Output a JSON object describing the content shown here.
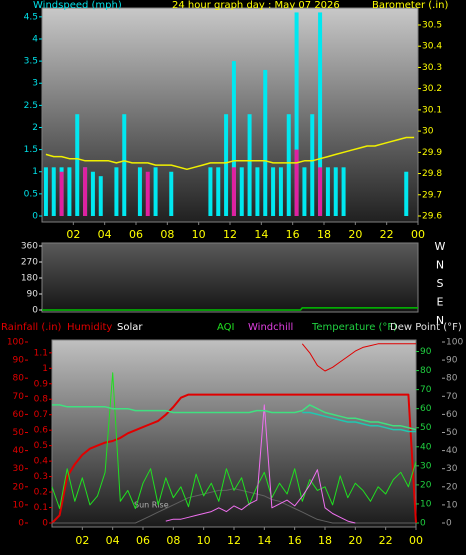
{
  "chart_data": [
    {
      "type": "combo",
      "title": "24 hour graph day : May 07 2026",
      "title_color": "#ffff00",
      "y_label": "Windspeed (mph)",
      "y_color": "#00e0e8",
      "y2_label": "Barometer (.in)",
      "y2_color": "#ffff00",
      "xlim": [
        0,
        24
      ],
      "xtick_color": "#ffff00",
      "xticks": [
        {
          "value": 2,
          "label": "02"
        },
        {
          "value": 4,
          "label": "04"
        },
        {
          "value": 6,
          "label": "06"
        },
        {
          "value": 8,
          "label": "08"
        },
        10,
        12,
        14,
        16,
        18,
        20,
        22,
        {
          "value": 24,
          "label": "00"
        }
      ],
      "ylim": [
        0,
        4.7
      ],
      "yticks": [
        0,
        0.5,
        1,
        1.5,
        2,
        2.5,
        3,
        3.5,
        4,
        4.5
      ],
      "y2lim": [
        29.6,
        30.58
      ],
      "y2ticks": [
        29.6,
        29.7,
        29.8,
        29.9,
        30,
        30.1,
        30.2,
        30.3,
        30.4,
        30.5
      ],
      "x": [
        0.25,
        0.75,
        1.25,
        1.75,
        2.25,
        2.75,
        3.25,
        3.75,
        4.25,
        4.75,
        5.25,
        5.75,
        6.25,
        6.75,
        7.25,
        7.75,
        8.25,
        8.75,
        9.25,
        9.75,
        10.25,
        10.75,
        11.25,
        11.75,
        12.25,
        12.75,
        13.25,
        13.75,
        14.25,
        14.75,
        15.25,
        15.75,
        16.25,
        16.75,
        17.25,
        17.75,
        18.25,
        18.75,
        19.25,
        19.75,
        20.25,
        20.75,
        21.25,
        21.75,
        22.25,
        22.75,
        23.25,
        23.75
      ],
      "series": [
        {
          "kind": "bar",
          "color": "#00e8f0",
          "values": [
            1.1,
            1.1,
            1.1,
            1.1,
            2.3,
            1.1,
            1.0,
            0.9,
            0,
            1.1,
            2.3,
            0,
            1.1,
            0,
            1.1,
            0,
            1.0,
            0,
            0,
            0,
            0,
            1.1,
            1.1,
            2.3,
            3.5,
            1.1,
            2.3,
            1.1,
            3.3,
            1.1,
            1.1,
            2.3,
            4.6,
            1.1,
            2.3,
            4.6,
            1.1,
            1.1,
            1.1,
            0,
            0,
            0,
            0,
            0,
            0,
            0,
            1.0,
            0
          ]
        },
        {
          "kind": "bar",
          "color": "#e020a0",
          "values": [
            0,
            0,
            1.0,
            0,
            0,
            1.1,
            0,
            0,
            0,
            0,
            0,
            0,
            0,
            1.0,
            0,
            0,
            0,
            0,
            0,
            0,
            0,
            0,
            0,
            0,
            1.1,
            0,
            0,
            0,
            0,
            0,
            0,
            0,
            1.5,
            0,
            0,
            1.1,
            0,
            0,
            0,
            0,
            0,
            0,
            0,
            0,
            0,
            0,
            0,
            0
          ]
        },
        {
          "kind": "line",
          "axis": "y2",
          "color": "#f0f000",
          "values": [
            29.89,
            29.88,
            29.88,
            29.87,
            29.87,
            29.86,
            29.86,
            29.86,
            29.86,
            29.85,
            29.86,
            29.85,
            29.85,
            29.85,
            29.84,
            29.84,
            29.84,
            29.83,
            29.82,
            29.83,
            29.84,
            29.85,
            29.85,
            29.85,
            29.86,
            29.86,
            29.86,
            29.86,
            29.86,
            29.85,
            29.85,
            29.85,
            29.85,
            29.86,
            29.86,
            29.87,
            29.88,
            29.89,
            29.9,
            29.91,
            29.92,
            29.93,
            29.93,
            29.94,
            29.95,
            29.96,
            29.97,
            29.97
          ]
        }
      ]
    },
    {
      "type": "line",
      "xlim": [
        0,
        24
      ],
      "ylim": [
        0,
        360
      ],
      "yticks": [
        0,
        90,
        180,
        270,
        360
      ],
      "y_color": "#e0e0e0",
      "y2ticks": [
        {
          "value": 360,
          "label": "W"
        },
        {
          "value": 270,
          "label": "N"
        },
        {
          "value": 180,
          "label": "S"
        },
        {
          "value": 90,
          "label": "E"
        },
        {
          "value": 0,
          "label": "N"
        }
      ],
      "x": [
        0,
        16.5,
        16.6,
        24
      ],
      "series": [
        {
          "kind": "line",
          "color": "#00c000",
          "values": [
            0,
            0,
            12,
            12
          ]
        }
      ]
    },
    {
      "type": "combo",
      "xlim": [
        0,
        24
      ],
      "xtick_color": "#ffff00",
      "xticks": [
        {
          "value": 2,
          "label": "02"
        },
        {
          "value": 4,
          "label": "04"
        },
        {
          "value": 6,
          "label": "06"
        },
        {
          "value": 8,
          "label": "08"
        },
        10,
        12,
        14,
        16,
        18,
        20,
        22,
        {
          "value": 24,
          "label": "00"
        }
      ],
      "axes": [
        {
          "side": "left-outer",
          "color": "#e00000",
          "lim": [
            0,
            100
          ],
          "ticks": [
            0,
            10,
            20,
            30,
            40,
            50,
            60,
            70,
            80,
            90,
            100
          ]
        },
        {
          "side": "left-inner",
          "color": "#e00000",
          "lim": [
            0,
            1.17
          ],
          "ticks": [
            0,
            0.1,
            0.2,
            0.3,
            0.4,
            0.5,
            0.6,
            0.7,
            0.8,
            0.9,
            1,
            1.1
          ]
        },
        {
          "side": "right-inner",
          "color": "#20d040",
          "lim": [
            0,
            95
          ],
          "ticks": [
            0,
            10,
            20,
            30,
            40,
            50,
            60,
            70,
            80,
            90
          ]
        },
        {
          "side": "right-outer",
          "color": "#a0a0a0",
          "lim": [
            0,
            100
          ],
          "ticks": [
            0,
            10,
            20,
            30,
            40,
            50,
            60,
            70,
            80,
            90,
            100
          ]
        }
      ],
      "annotations": [
        "Sun Rise"
      ],
      "x": [
        0,
        0.5,
        1,
        1.5,
        2,
        2.5,
        3,
        3.5,
        4,
        4.5,
        5,
        5.5,
        6,
        6.5,
        7,
        7.5,
        8,
        8.5,
        9,
        9.5,
        10,
        10.5,
        11,
        11.5,
        12,
        12.5,
        13,
        13.5,
        14,
        14.5,
        15,
        15.5,
        16,
        16.5,
        17,
        17.5,
        18,
        18.5,
        19,
        19.5,
        20,
        20.5,
        21,
        21.5,
        22,
        22.5,
        23,
        23.5,
        24
      ],
      "series": [
        {
          "name": "Rainfall (.in)",
          "kind": "line",
          "axis": 1,
          "color": "#e00000",
          "label_color": "#e00000",
          "width": 2,
          "values": [
            0,
            0.05,
            0.3,
            0.38,
            0.44,
            0.48,
            0.5,
            0.52,
            0.53,
            0.55,
            0.58,
            0.6,
            0.62,
            0.64,
            0.66,
            0.7,
            0.75,
            0.81,
            0.83,
            0.83,
            0.83,
            0.83,
            0.83,
            0.83,
            0.83,
            0.83,
            0.83,
            0.83,
            0.83,
            0.83,
            0.83,
            0.83,
            0.83,
            0.83,
            0.83,
            0.83,
            0.83,
            0.83,
            0.83,
            0.83,
            0.83,
            0.83,
            0.83,
            0.83,
            0.83,
            0.83,
            0.83,
            0.83,
            0
          ]
        },
        {
          "name": "Humidity",
          "kind": "line",
          "axis": 0,
          "color": "#e00000",
          "label_color": "#e00000",
          "width": 1,
          "values": [
            null,
            null,
            null,
            null,
            null,
            null,
            null,
            null,
            null,
            null,
            null,
            null,
            null,
            null,
            null,
            null,
            null,
            null,
            null,
            null,
            null,
            null,
            null,
            null,
            null,
            null,
            null,
            null,
            null,
            null,
            null,
            null,
            null,
            99,
            94,
            87,
            84,
            86,
            89,
            92,
            95,
            97,
            98,
            99,
            99,
            99,
            99,
            99,
            99
          ]
        },
        {
          "name": "Solar",
          "kind": "line",
          "axis": 3,
          "color": "#606060",
          "label_color": "#ffffff",
          "width": 1,
          "values": [
            0,
            0,
            0,
            0,
            0,
            0,
            0,
            0,
            0,
            0,
            0,
            0,
            2,
            4,
            6,
            8,
            10,
            12,
            14,
            15,
            16,
            17,
            18,
            18,
            19,
            18,
            17,
            16,
            15,
            13,
            12,
            10,
            8,
            6,
            4,
            2,
            1,
            0,
            0,
            0,
            0,
            0,
            0,
            0,
            0,
            0,
            0,
            0,
            0
          ]
        },
        {
          "name": "AQI",
          "kind": "line",
          "axis": 3,
          "color": "#20e020",
          "label_color": "#20e020",
          "width": 1,
          "values": [
            20,
            8,
            30,
            12,
            25,
            10,
            15,
            28,
            83,
            12,
            18,
            8,
            22,
            30,
            10,
            25,
            14,
            20,
            9,
            27,
            15,
            22,
            12,
            30,
            18,
            25,
            10,
            20,
            28,
            14,
            22,
            16,
            30,
            12,
            24,
            18,
            20,
            10,
            26,
            14,
            22,
            18,
            12,
            20,
            16,
            24,
            28,
            20,
            34
          ]
        },
        {
          "name": "Windchill",
          "kind": "line",
          "axis": 2,
          "color": "#f070f0",
          "label_color": "#e040e0",
          "width": 1,
          "values": [
            null,
            null,
            null,
            null,
            null,
            null,
            null,
            null,
            null,
            null,
            null,
            null,
            null,
            null,
            null,
            1,
            2,
            2,
            3,
            4,
            5,
            6,
            8,
            6,
            9,
            7,
            10,
            12,
            62,
            8,
            10,
            12,
            9,
            14,
            20,
            28,
            8,
            5,
            3,
            1,
            0,
            null,
            null,
            null,
            null,
            null,
            null,
            null,
            null
          ]
        },
        {
          "name": "Temperature (°F)",
          "kind": "line",
          "axis": 2,
          "color": "#40e080",
          "label_color": "#20d040",
          "width": 1.5,
          "values": [
            62,
            62,
            61,
            61,
            61,
            61,
            61,
            61,
            60,
            60,
            60,
            59,
            59,
            59,
            59,
            59,
            58,
            58,
            58,
            58,
            58,
            58,
            58,
            58,
            58,
            58,
            58,
            59,
            59,
            58,
            58,
            58,
            58,
            59,
            62,
            60,
            58,
            57,
            56,
            55,
            55,
            54,
            53,
            53,
            52,
            51,
            51,
            50,
            49
          ]
        },
        {
          "name": "Dew Point (°F)",
          "kind": "line",
          "axis": 2,
          "color": "#20c8b0",
          "label_color": "#e0e0e0",
          "width": 1.5,
          "values": [
            null,
            null,
            null,
            null,
            null,
            null,
            null,
            null,
            null,
            null,
            null,
            null,
            null,
            null,
            null,
            null,
            null,
            null,
            null,
            null,
            null,
            null,
            null,
            null,
            null,
            null,
            null,
            null,
            null,
            null,
            null,
            null,
            null,
            58,
            58,
            57,
            56,
            55,
            54,
            53,
            53,
            52,
            51,
            51,
            50,
            49,
            49,
            48,
            48
          ]
        }
      ]
    }
  ]
}
